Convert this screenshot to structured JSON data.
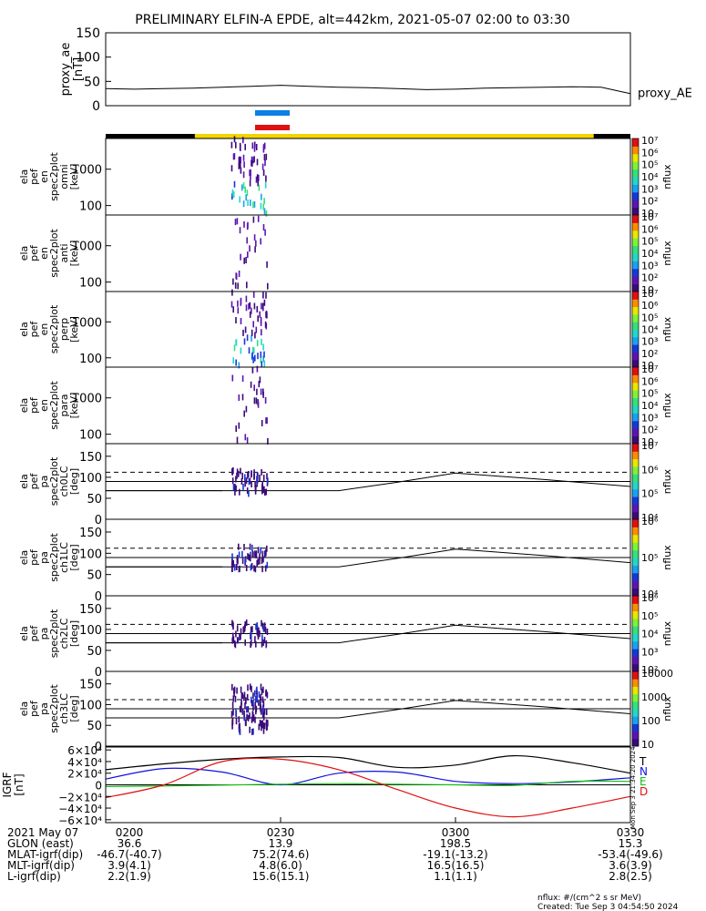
{
  "title": "PRELIMINARY ELFIN-A EPDE, alt=442km, 2021-05-07 02:00 to 03:30",
  "colors": {
    "blue_bar": "#0a7fe6",
    "red_bar": "#e01010",
    "orbit_yellow": "#f2d500",
    "orbit_black": "#000000"
  },
  "orbit_bar": [
    {
      "x0": 0,
      "x1": 0.17,
      "color": "black"
    },
    {
      "x0": 0.17,
      "x1": 0.93,
      "color": "yellow"
    },
    {
      "x0": 0.93,
      "x1": 1.0,
      "color": "black"
    }
  ],
  "chart_data": [
    {
      "id": "proxy_ae",
      "type": "line",
      "ylabel": [
        "proxy_ae",
        "[nT]"
      ],
      "ylim": [
        0,
        150
      ],
      "yticks": [
        0,
        50,
        100,
        150
      ],
      "xlim": [
        0,
        90
      ],
      "series": [
        {
          "name": "proxy_AE",
          "x": [
            0,
            5,
            10,
            15,
            20,
            25,
            30,
            35,
            40,
            45,
            50,
            55,
            60,
            65,
            70,
            75,
            80,
            85,
            88,
            90
          ],
          "y": [
            35,
            34,
            35,
            36,
            38,
            40,
            42,
            40,
            38,
            37,
            35,
            33,
            34,
            36,
            37,
            38,
            39,
            38,
            30,
            25
          ]
        }
      ]
    },
    {
      "id": "en_omni",
      "type": "heatmap",
      "ylabel": [
        "ela",
        "pef",
        "en",
        "spec2plot",
        "omni",
        "[keV]"
      ],
      "ylog": true,
      "ylim": [
        55,
        7000
      ],
      "yticks": [
        {
          "v": 100,
          "t": "100"
        },
        {
          "v": 1000,
          "t": "1000"
        }
      ],
      "cbar": {
        "ticks": [
          "10",
          "10²",
          "10³",
          "10⁴",
          "10⁵",
          "10⁶",
          "10⁷"
        ],
        "label": "nflux"
      }
    },
    {
      "id": "en_anti",
      "type": "heatmap",
      "ylabel": [
        "ela",
        "pef",
        "en",
        "spec2plot",
        "anti",
        "[keV]"
      ],
      "ylog": true,
      "ylim": [
        55,
        7000
      ],
      "yticks": [
        {
          "v": 100,
          "t": "100"
        },
        {
          "v": 1000,
          "t": "1000"
        }
      ],
      "cbar": {
        "ticks": [
          "10",
          "10²",
          "10³",
          "10⁴",
          "10⁵",
          "10⁶",
          "10⁷"
        ],
        "label": "nflux"
      }
    },
    {
      "id": "en_perp",
      "type": "heatmap",
      "ylabel": [
        "ela",
        "pef",
        "en",
        "spec2plot",
        "perp",
        "[keV]"
      ],
      "ylog": true,
      "ylim": [
        55,
        7000
      ],
      "yticks": [
        {
          "v": 100,
          "t": "100"
        },
        {
          "v": 1000,
          "t": "1000"
        }
      ],
      "cbar": {
        "ticks": [
          "10",
          "10²",
          "10³",
          "10⁴",
          "10⁵",
          "10⁶",
          "10⁷"
        ],
        "label": "nflux"
      }
    },
    {
      "id": "en_para",
      "type": "heatmap",
      "ylabel": [
        "ela",
        "pef",
        "en",
        "spec2plot",
        "para",
        "[keV]"
      ],
      "ylog": true,
      "ylim": [
        55,
        7000
      ],
      "yticks": [
        {
          "v": 100,
          "t": "100"
        },
        {
          "v": 1000,
          "t": "1000"
        }
      ],
      "cbar": {
        "ticks": [
          "10",
          "10²",
          "10³",
          "10⁴",
          "10⁵",
          "10⁶",
          "10⁷"
        ],
        "label": "nflux"
      }
    },
    {
      "id": "pa_ch0",
      "type": "heatmap",
      "ylabel": [
        "ela",
        "pef",
        "pa",
        "spec2plot",
        "ch0LC",
        "[deg]"
      ],
      "ylim": [
        0,
        180
      ],
      "yticks": [
        {
          "v": 0,
          "t": "0"
        },
        {
          "v": 50,
          "t": "50"
        },
        {
          "v": 100,
          "t": "100"
        },
        {
          "v": 150,
          "t": "150"
        }
      ],
      "cbar": {
        "ticks": [
          "10⁴",
          "10⁵",
          "10⁶",
          "10⁷"
        ],
        "label": "nflux"
      }
    },
    {
      "id": "pa_ch1",
      "type": "heatmap",
      "ylabel": [
        "ela",
        "pef",
        "pa",
        "spec2plot",
        "ch1LC",
        "[deg]"
      ],
      "ylim": [
        0,
        180
      ],
      "yticks": [
        {
          "v": 0,
          "t": "0"
        },
        {
          "v": 50,
          "t": "50"
        },
        {
          "v": 100,
          "t": "100"
        },
        {
          "v": 150,
          "t": "150"
        }
      ],
      "cbar": {
        "ticks": [
          "10⁴",
          "10⁵",
          "10⁶"
        ],
        "label": "nflux"
      }
    },
    {
      "id": "pa_ch2",
      "type": "heatmap",
      "ylabel": [
        "ela",
        "pef",
        "pa",
        "spec2plot",
        "ch2LC",
        "[deg]"
      ],
      "ylim": [
        0,
        180
      ],
      "yticks": [
        {
          "v": 0,
          "t": "0"
        },
        {
          "v": 50,
          "t": "50"
        },
        {
          "v": 100,
          "t": "100"
        },
        {
          "v": 150,
          "t": "150"
        }
      ],
      "cbar": {
        "ticks": [
          "10²",
          "10³",
          "10⁴",
          "10⁵",
          "10⁶"
        ],
        "label": "nflux"
      }
    },
    {
      "id": "pa_ch3",
      "type": "heatmap",
      "ylabel": [
        "ela",
        "pef",
        "pa",
        "spec2plot",
        "ch3LC",
        "[deg]"
      ],
      "ylim": [
        0,
        180
      ],
      "yticks": [
        {
          "v": 0,
          "t": "0"
        },
        {
          "v": 50,
          "t": "50"
        },
        {
          "v": 100,
          "t": "100"
        },
        {
          "v": 150,
          "t": "150"
        }
      ],
      "cbar": {
        "ticks": [
          "10",
          "100",
          "1000",
          "10000"
        ],
        "label": "nflux"
      }
    },
    {
      "id": "igrf",
      "type": "line",
      "ylabel": [
        "IGRF",
        "[nT]"
      ],
      "ylim": [
        -65000,
        65000
      ],
      "yticks": [
        {
          "v": 60000,
          "t": "6×10⁴"
        },
        {
          "v": 40000,
          "t": "4×10⁴"
        },
        {
          "v": 20000,
          "t": "2×10⁴"
        },
        {
          "v": 0,
          "t": "0"
        },
        {
          "v": -20000,
          "t": "−2×10⁴"
        },
        {
          "v": -40000,
          "t": "−4×10⁴"
        },
        {
          "v": -60000,
          "t": "−6×10⁴"
        }
      ],
      "x": [
        0,
        10,
        20,
        30,
        40,
        50,
        60,
        70,
        80,
        90
      ],
      "series": [
        {
          "name": "T",
          "color": "#000000",
          "y": [
            26000,
            36000,
            44000,
            48000,
            47000,
            30000,
            34000,
            50000,
            38000,
            20000
          ]
        },
        {
          "name": "N",
          "color": "#1010e0",
          "y": [
            10000,
            28000,
            22000,
            0,
            20000,
            22000,
            6000,
            2000,
            5000,
            12000
          ]
        },
        {
          "name": "E",
          "color": "#10c010",
          "y": [
            -3000,
            -2000,
            -500,
            1000,
            2000,
            1000,
            0,
            -1000,
            6000,
            6000
          ]
        },
        {
          "name": "D",
          "color": "#e01010",
          "y": [
            -22000,
            0,
            40000,
            44000,
            26000,
            -8000,
            -40000,
            -55000,
            -40000,
            -20000
          ]
        }
      ]
    }
  ],
  "pa_lines": {
    "solid": [
      68,
      90
    ],
    "dashed": 112,
    "curve_x": [
      0,
      20,
      40,
      50,
      60,
      75,
      90
    ],
    "curve_y": [
      68,
      68,
      68,
      88,
      110,
      95,
      78
    ]
  },
  "xaxis": {
    "label": "2021 May 07",
    "ticks": [
      "0200",
      "0230",
      "0300",
      "0330"
    ]
  },
  "ephemeris": [
    {
      "label": "GLON (east)",
      "vals": [
        "36.6",
        "13.9",
        "198.5",
        "15.3"
      ]
    },
    {
      "label": "MLAT-igrf(dip)",
      "vals": [
        "-46.7(-40.7)",
        "75.2(74.6)",
        "-19.1(-13.2)",
        "-53.4(-49.6)"
      ]
    },
    {
      "label": "MLT-igrf(dip)",
      "vals": [
        "3.9(4.1)",
        "4.8(6.0)",
        "16.5(16.5)",
        "3.6(3.9)"
      ]
    },
    {
      "label": "L-igrf(dip)",
      "vals": [
        "2.2(1.9)",
        "15.6(15.1)",
        "1.1(1.1)",
        "2.8(2.5)"
      ]
    }
  ],
  "side_stamp": "Mon Sep  3 21:34:20 2024",
  "footer": {
    "line1": "nflux: #/(cm^2 s sr MeV)",
    "line2": "Created: Tue Sep  3 04:54:50 2024"
  }
}
